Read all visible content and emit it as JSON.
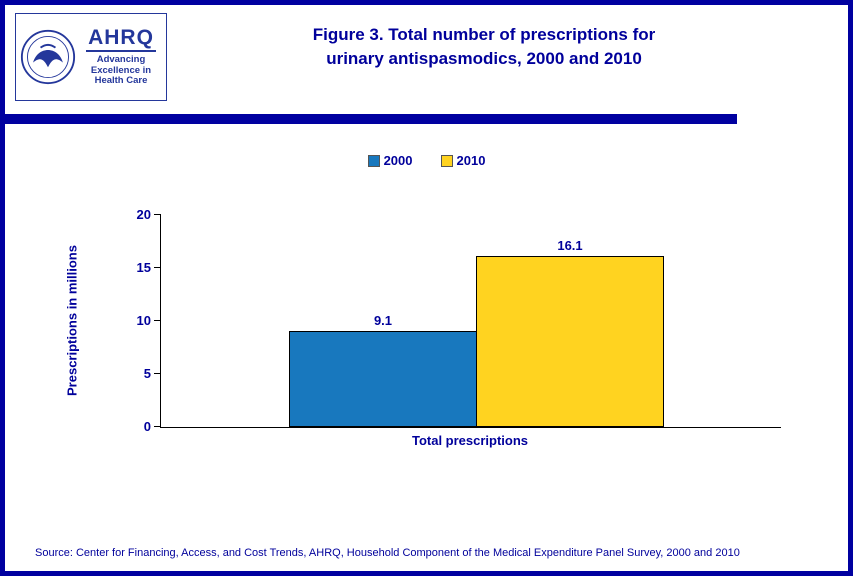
{
  "header": {
    "title_line1": "Figure 3. Total number of prescriptions for",
    "title_line2": "urinary antispasmodics, 2000 and 2010",
    "logo": {
      "ahrq_text": "AHRQ",
      "tagline_line1": "Advancing",
      "tagline_line2": "Excellence in",
      "tagline_line3": "Health Care"
    }
  },
  "colors": {
    "navy_text": "#00009B",
    "page_border": "#0000A0",
    "bar_2000": "#1878BE",
    "bar_2010": "#FFD320"
  },
  "chart_data": {
    "type": "bar",
    "title": "Figure 3. Total number of prescriptions for urinary antispasmodics, 2000 and 2010",
    "categories": [
      "Total prescriptions"
    ],
    "series": [
      {
        "name": "2000",
        "values": [
          9.1
        ],
        "color": "#1878BE"
      },
      {
        "name": "2010",
        "values": [
          16.1
        ],
        "color": "#FFD320"
      }
    ],
    "xlabel": "Total prescriptions",
    "ylabel": "Prescriptions in millions",
    "ylim": [
      0,
      20
    ],
    "yticks": [
      0,
      5,
      10,
      15,
      20
    ],
    "grid": false,
    "legend_position": "top-center"
  },
  "footer": {
    "source": "Source: Center for Financing, Access, and Cost Trends, AHRQ, Household Component of the Medical Expenditure Panel Survey, 2000 and 2010"
  }
}
